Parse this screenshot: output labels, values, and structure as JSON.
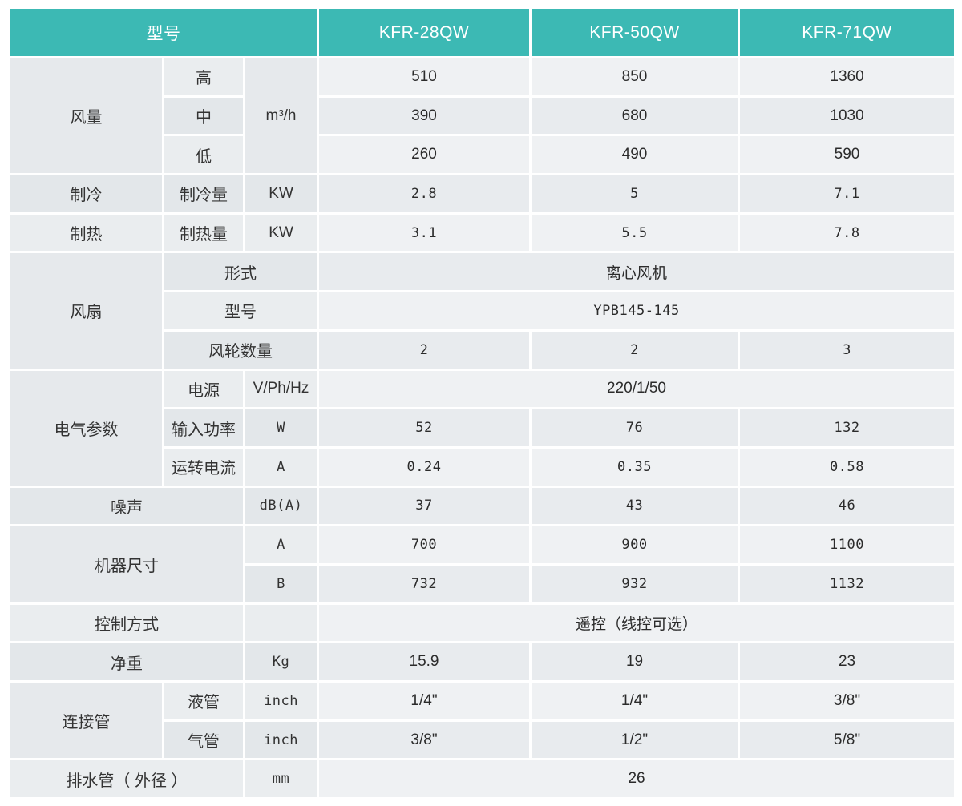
{
  "colors": {
    "header_bg": "#3cb9b4",
    "header_text": "#ffffff",
    "label_cell_light": "#eaedef",
    "label_cell_dark": "#e3e7ea",
    "value_cell_light": "#eff1f3",
    "value_cell_dark": "#e8ebee"
  },
  "table": {
    "header": {
      "label": "型号",
      "models": [
        "KFR-28QW",
        "KFR-50QW",
        "KFR-71QW"
      ]
    },
    "rows": [
      {
        "shade": "light",
        "cells": [
          {
            "text": "风量",
            "kind": "label",
            "rowspan": 3
          },
          {
            "text": "高",
            "kind": "sub"
          },
          {
            "text": "m³/h",
            "kind": "unit",
            "rowspan": 3
          },
          {
            "text": "510",
            "kind": "value"
          },
          {
            "text": "850",
            "kind": "value"
          },
          {
            "text": "1360",
            "kind": "value"
          }
        ]
      },
      {
        "shade": "dark",
        "cells": [
          {
            "text": "中",
            "kind": "sub"
          },
          {
            "text": "390",
            "kind": "value"
          },
          {
            "text": "680",
            "kind": "value"
          },
          {
            "text": "1030",
            "kind": "value"
          }
        ]
      },
      {
        "shade": "light",
        "cells": [
          {
            "text": "低",
            "kind": "sub"
          },
          {
            "text": "260",
            "kind": "value"
          },
          {
            "text": "490",
            "kind": "value"
          },
          {
            "text": "590",
            "kind": "value"
          }
        ]
      },
      {
        "shade": "dark",
        "cells": [
          {
            "text": "制冷",
            "kind": "label"
          },
          {
            "text": "制冷量",
            "kind": "sub"
          },
          {
            "text": "KW",
            "kind": "unit"
          },
          {
            "text": "2.8",
            "kind": "value",
            "mono": true
          },
          {
            "text": "5",
            "kind": "value",
            "mono": true
          },
          {
            "text": "7.1",
            "kind": "value",
            "mono": true
          }
        ]
      },
      {
        "shade": "light",
        "cells": [
          {
            "text": "制热",
            "kind": "label"
          },
          {
            "text": "制热量",
            "kind": "sub"
          },
          {
            "text": "KW",
            "kind": "unit"
          },
          {
            "text": "3.1",
            "kind": "value",
            "mono": true
          },
          {
            "text": "5.5",
            "kind": "value",
            "mono": true
          },
          {
            "text": "7.8",
            "kind": "value",
            "mono": true
          }
        ]
      },
      {
        "shade": "dark",
        "cells": [
          {
            "text": "风扇",
            "kind": "label",
            "rowspan": 3
          },
          {
            "text": "形式",
            "kind": "sub",
            "colspan": 2
          },
          {
            "text": "离心风机",
            "kind": "value",
            "colspan": 3
          }
        ]
      },
      {
        "shade": "light",
        "cells": [
          {
            "text": "型号",
            "kind": "sub",
            "colspan": 2
          },
          {
            "text": "YPB145-145",
            "kind": "value",
            "colspan": 3,
            "mono": true
          }
        ]
      },
      {
        "shade": "dark",
        "cells": [
          {
            "text": "风轮数量",
            "kind": "sub",
            "colspan": 2
          },
          {
            "text": "2",
            "kind": "value",
            "mono": true
          },
          {
            "text": "2",
            "kind": "value",
            "mono": true
          },
          {
            "text": "3",
            "kind": "value",
            "mono": true
          }
        ]
      },
      {
        "shade": "light",
        "cells": [
          {
            "text": "电气参数",
            "kind": "label",
            "rowspan": 3
          },
          {
            "text": "电源",
            "kind": "sub"
          },
          {
            "text": "V/Ph/Hz",
            "kind": "unit"
          },
          {
            "text": "220/1/50",
            "kind": "value",
            "colspan": 3
          }
        ]
      },
      {
        "shade": "dark",
        "cells": [
          {
            "text": "输入功率",
            "kind": "sub"
          },
          {
            "text": "W",
            "kind": "unit",
            "mono": true
          },
          {
            "text": "52",
            "kind": "value",
            "mono": true
          },
          {
            "text": "76",
            "kind": "value",
            "mono": true
          },
          {
            "text": "132",
            "kind": "value",
            "mono": true
          }
        ]
      },
      {
        "shade": "light",
        "cells": [
          {
            "text": "运转电流",
            "kind": "sub"
          },
          {
            "text": "A",
            "kind": "unit",
            "mono": true
          },
          {
            "text": "0.24",
            "kind": "value",
            "mono": true
          },
          {
            "text": "0.35",
            "kind": "value",
            "mono": true
          },
          {
            "text": "0.58",
            "kind": "value",
            "mono": true
          }
        ]
      },
      {
        "shade": "dark",
        "cells": [
          {
            "text": "噪声",
            "kind": "label",
            "colspan": 2
          },
          {
            "text": "dB(A)",
            "kind": "unit",
            "mono": true
          },
          {
            "text": "37",
            "kind": "value",
            "mono": true
          },
          {
            "text": "43",
            "kind": "value",
            "mono": true
          },
          {
            "text": "46",
            "kind": "value",
            "mono": true
          }
        ]
      },
      {
        "shade": "light",
        "cells": [
          {
            "text": "机器尺寸",
            "kind": "label",
            "colspan": 2,
            "rowspan": 2
          },
          {
            "text": "A",
            "kind": "unit",
            "mono": true
          },
          {
            "text": "700",
            "kind": "value",
            "mono": true
          },
          {
            "text": "900",
            "kind": "value",
            "mono": true
          },
          {
            "text": "1100",
            "kind": "value",
            "mono": true
          }
        ]
      },
      {
        "shade": "dark",
        "cells": [
          {
            "text": "B",
            "kind": "unit",
            "mono": true
          },
          {
            "text": "732",
            "kind": "value",
            "mono": true
          },
          {
            "text": "932",
            "kind": "value",
            "mono": true
          },
          {
            "text": "1132",
            "kind": "value",
            "mono": true
          }
        ]
      },
      {
        "shade": "light",
        "cells": [
          {
            "text": "控制方式",
            "kind": "label",
            "colspan": 2
          },
          {
            "text": "",
            "kind": "unit"
          },
          {
            "text": "遥控（线控可选）",
            "kind": "value",
            "colspan": 3
          }
        ]
      },
      {
        "shade": "dark",
        "cells": [
          {
            "text": "净重",
            "kind": "label",
            "colspan": 2
          },
          {
            "text": "Kg",
            "kind": "unit",
            "mono": true
          },
          {
            "text": "15.9",
            "kind": "value"
          },
          {
            "text": "19",
            "kind": "value"
          },
          {
            "text": "23",
            "kind": "value"
          }
        ]
      },
      {
        "shade": "light",
        "cells": [
          {
            "text": "连接管",
            "kind": "label",
            "rowspan": 2
          },
          {
            "text": "液管",
            "kind": "sub"
          },
          {
            "text": "inch",
            "kind": "unit",
            "mono": true
          },
          {
            "text": "1/4\"",
            "kind": "value"
          },
          {
            "text": "1/4\"",
            "kind": "value"
          },
          {
            "text": "3/8\"",
            "kind": "value"
          }
        ]
      },
      {
        "shade": "dark",
        "cells": [
          {
            "text": "气管",
            "kind": "sub"
          },
          {
            "text": "inch",
            "kind": "unit",
            "mono": true
          },
          {
            "text": "3/8\"",
            "kind": "value"
          },
          {
            "text": "1/2\"",
            "kind": "value"
          },
          {
            "text": "5/8\"",
            "kind": "value"
          }
        ]
      },
      {
        "shade": "light",
        "cells": [
          {
            "text": "排水管（ 外径 ）",
            "kind": "label",
            "colspan": 2
          },
          {
            "text": "mm",
            "kind": "unit",
            "mono": true
          },
          {
            "text": "26",
            "kind": "value",
            "colspan": 3
          }
        ]
      }
    ]
  }
}
